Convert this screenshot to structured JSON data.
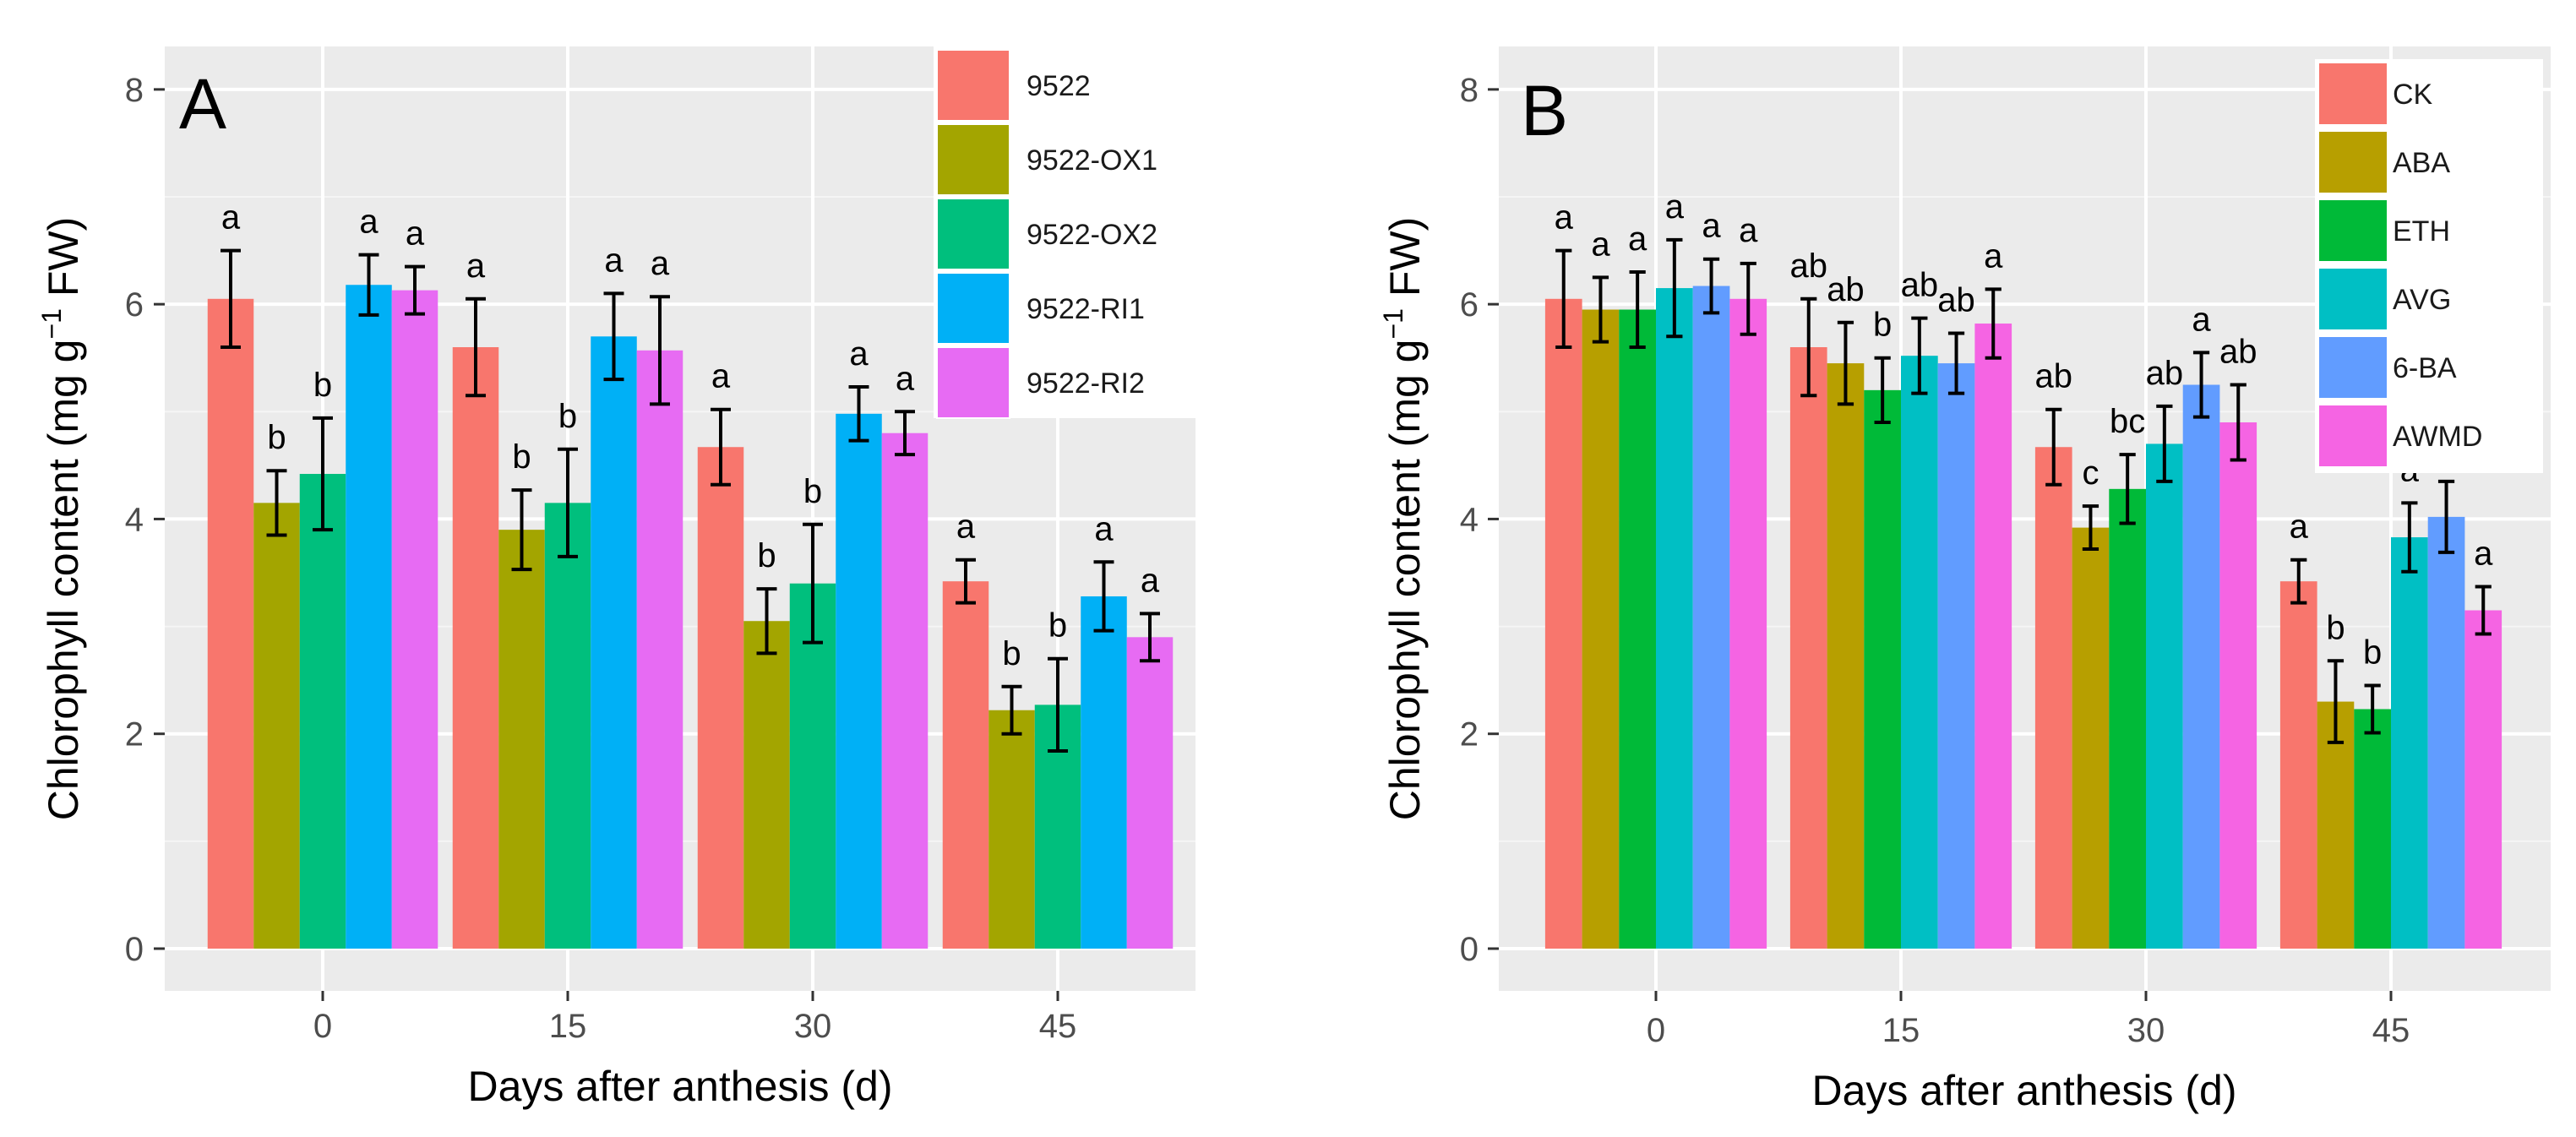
{
  "chart_data": [
    {
      "type": "bar",
      "panel_label": "A",
      "xlabel": "Days after anthesis (d)",
      "ylabel_main": "Chlorophyll content (mg g",
      "ylabel_sup": "−1",
      "ylabel_tail": " FW)",
      "ylim": [
        0,
        8.4
      ],
      "yticks": [
        0,
        2,
        4,
        6,
        8
      ],
      "categories": [
        "0",
        "15",
        "30",
        "45"
      ],
      "grid": true,
      "legend_position": "top-right",
      "series": [
        {
          "name": "9522",
          "color": "#F8766D",
          "values": [
            6.05,
            5.6,
            4.67,
            3.42
          ],
          "errors": [
            0.45,
            0.45,
            0.35,
            0.2
          ],
          "labels": [
            "a",
            "a",
            "a",
            "a"
          ]
        },
        {
          "name": "9522-OX1",
          "color": "#A3A500",
          "values": [
            4.15,
            3.9,
            3.05,
            2.22
          ],
          "errors": [
            0.3,
            0.37,
            0.3,
            0.22
          ],
          "labels": [
            "b",
            "b",
            "b",
            "b"
          ]
        },
        {
          "name": "9522-OX2",
          "color": "#00BF7D",
          "values": [
            4.42,
            4.15,
            3.4,
            2.27
          ],
          "errors": [
            0.52,
            0.5,
            0.55,
            0.43
          ],
          "labels": [
            "b",
            "b",
            "b",
            "b"
          ]
        },
        {
          "name": "9522-RI1",
          "color": "#00B0F6",
          "values": [
            6.18,
            5.7,
            4.98,
            3.28
          ],
          "errors": [
            0.28,
            0.4,
            0.25,
            0.32
          ],
          "labels": [
            "a",
            "a",
            "a",
            "a"
          ]
        },
        {
          "name": "9522-RI2",
          "color": "#E76BF3",
          "values": [
            6.13,
            5.57,
            4.8,
            2.9
          ],
          "errors": [
            0.22,
            0.5,
            0.2,
            0.22
          ],
          "labels": [
            "a",
            "a",
            "a",
            "a"
          ]
        }
      ]
    },
    {
      "type": "bar",
      "panel_label": "B",
      "xlabel": "Days after anthesis (d)",
      "ylabel_main": "Chlorophyll content  (mg g",
      "ylabel_sup": "−1",
      "ylabel_tail": " FW)",
      "ylim": [
        0,
        8.4
      ],
      "yticks": [
        0,
        2,
        4,
        6,
        8
      ],
      "categories": [
        "0",
        "15",
        "30",
        "45"
      ],
      "grid": true,
      "legend_position": "top-right",
      "series": [
        {
          "name": "CK",
          "color": "#F8766D",
          "values": [
            6.05,
            5.6,
            4.67,
            3.42
          ],
          "errors": [
            0.45,
            0.45,
            0.35,
            0.2
          ],
          "labels": [
            "a",
            "ab",
            "ab",
            "a"
          ]
        },
        {
          "name": "ABA",
          "color": "#B79F00",
          "values": [
            5.95,
            5.45,
            3.92,
            2.3
          ],
          "errors": [
            0.3,
            0.38,
            0.2,
            0.38
          ],
          "labels": [
            "a",
            "ab",
            "c",
            "b"
          ]
        },
        {
          "name": "ETH",
          "color": "#00BA38",
          "values": [
            5.95,
            5.2,
            4.28,
            2.23
          ],
          "errors": [
            0.35,
            0.3,
            0.32,
            0.22
          ],
          "labels": [
            "a",
            "b",
            "bc",
            "b"
          ]
        },
        {
          "name": "AVG",
          "color": "#00BFC4",
          "values": [
            6.15,
            5.52,
            4.7,
            3.83
          ],
          "errors": [
            0.45,
            0.35,
            0.35,
            0.32
          ],
          "labels": [
            "a",
            "ab",
            "ab",
            "a"
          ]
        },
        {
          "name": "6-BA",
          "color": "#619CFF",
          "values": [
            6.17,
            5.45,
            5.25,
            4.02
          ],
          "errors": [
            0.25,
            0.28,
            0.3,
            0.33
          ],
          "labels": [
            "a",
            "ab",
            "a",
            "a"
          ]
        },
        {
          "name": "AWMD",
          "color": "#F564E3",
          "values": [
            6.05,
            5.82,
            4.9,
            3.15
          ],
          "errors": [
            0.33,
            0.32,
            0.35,
            0.22
          ],
          "labels": [
            "a",
            "a",
            "ab",
            "a"
          ]
        }
      ]
    }
  ]
}
